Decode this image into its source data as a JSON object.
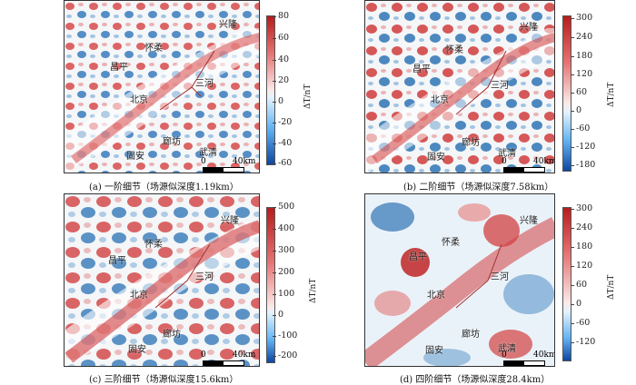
{
  "colors": {
    "positive": "#d63a3a",
    "negative": "#2f74b5",
    "neutral": "#f4f6f8"
  },
  "unit_label": "ΔT/nT",
  "scale_label": "40km",
  "scale_zero": "0",
  "place_names": {
    "xinglong": "兴隆",
    "huairou": "怀柔",
    "changping": "昌平",
    "sanhe": "三河",
    "beijing": "北京",
    "langfang": "廊坊",
    "guan": "固安",
    "wuqing": "武清"
  },
  "panels": [
    {
      "caption": "(a) 一阶细节（场源似深度1.19km）",
      "ticks": [
        "80",
        "60",
        "40",
        "20",
        "0",
        "-20",
        "-40",
        "-60"
      ]
    },
    {
      "caption": "(b) 二阶细节（场源似深度7.58km）",
      "ticks": [
        "300",
        "240",
        "180",
        "120",
        "60",
        "0",
        "-60",
        "-120",
        "-180"
      ]
    },
    {
      "caption": "(c) 三阶细节（场源似深度15.6km）",
      "ticks": [
        "500",
        "400",
        "300",
        "200",
        "100",
        "0",
        "-100",
        "-200"
      ]
    },
    {
      "caption": "(d) 四阶细节（场源似深度28.4km）",
      "ticks": [
        "300",
        "240",
        "180",
        "120",
        "60",
        "0",
        "-60",
        "-120"
      ]
    }
  ]
}
